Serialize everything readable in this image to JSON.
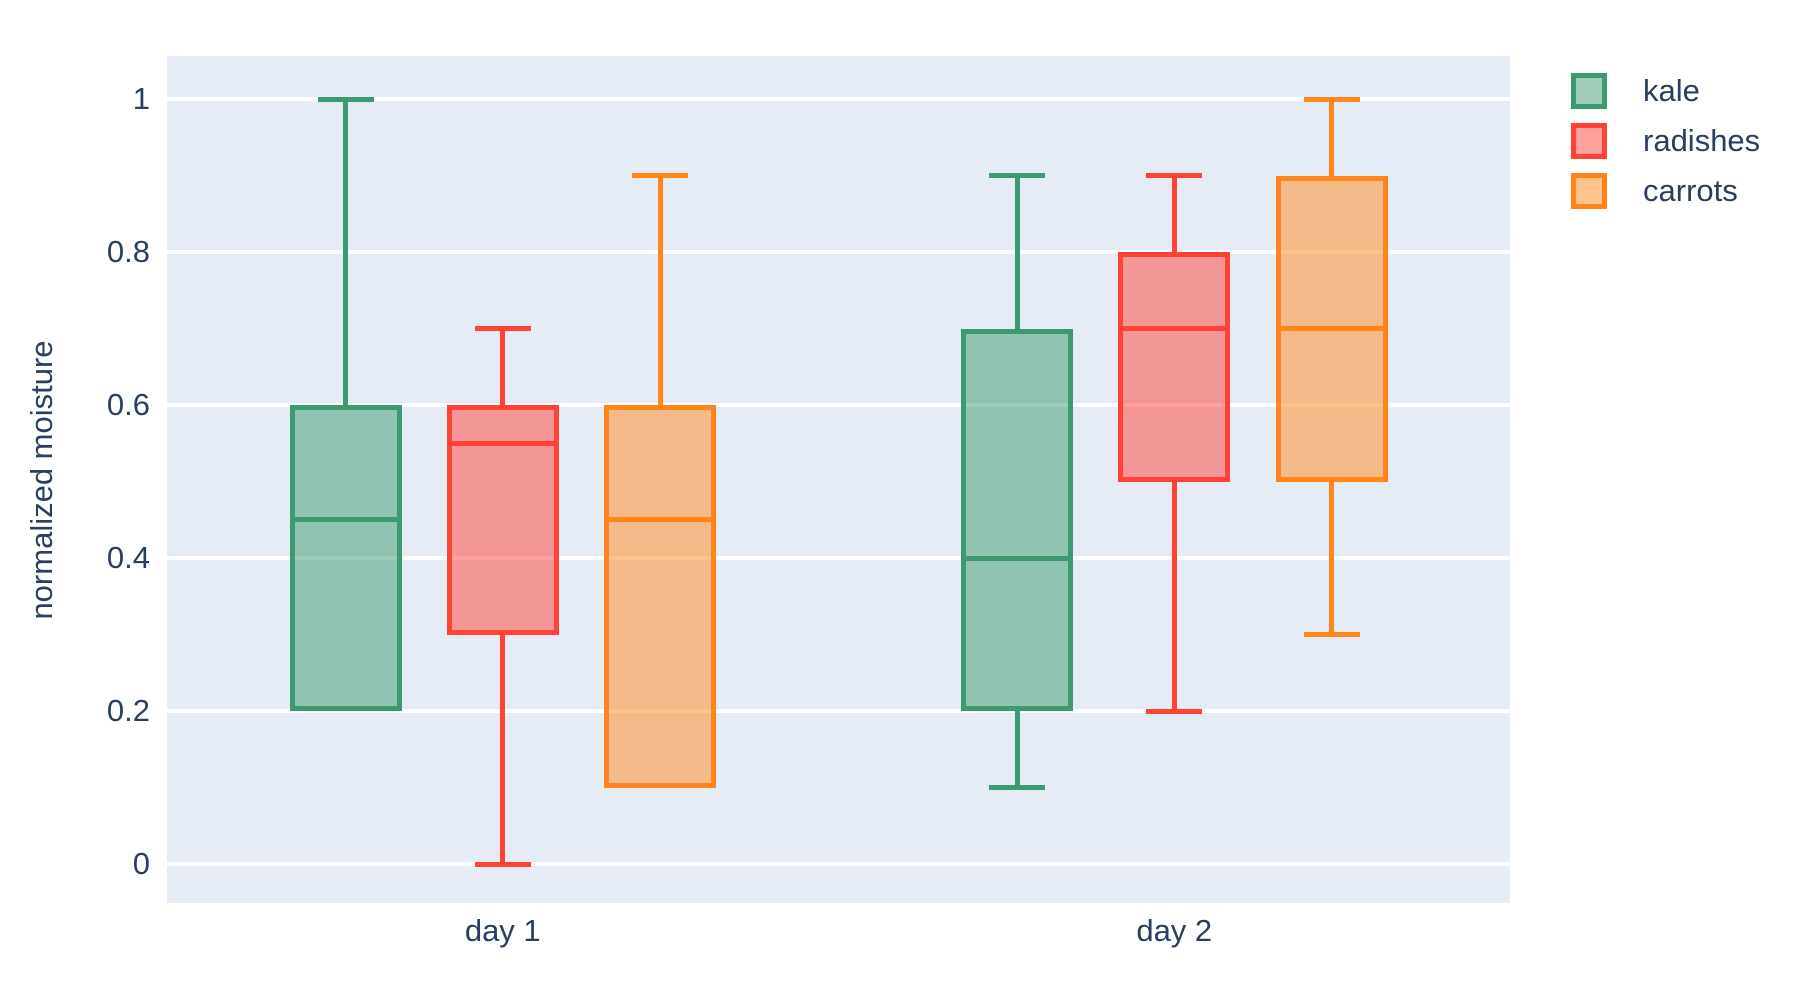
{
  "figure": {
    "background": "#ffffff",
    "plot_background": "#E5ECF6",
    "grid_color": "#ffffff",
    "text_color": "#2a3f5f"
  },
  "chart_data": {
    "type": "box",
    "orientation": "vertical",
    "grouped": true,
    "title": "",
    "xlabel": "",
    "ylabel": "normalized moisture",
    "categories": [
      "day 1",
      "day 2"
    ],
    "yticks": [
      0,
      0.2,
      0.4,
      0.6,
      0.8,
      1
    ],
    "ylim": [
      -0.06,
      1.06
    ],
    "grid": "horizontal-only",
    "legend_position": "outside-top-right",
    "box_fill_opacity": 0.5,
    "series": [
      {
        "name": "kale",
        "color": "#3D9970",
        "boxes": [
          {
            "category": "day 1",
            "whisker_low": 0.2,
            "q1": 0.2,
            "median": 0.45,
            "q3": 0.6,
            "whisker_high": 1.0
          },
          {
            "category": "day 2",
            "whisker_low": 0.1,
            "q1": 0.2,
            "median": 0.4,
            "q3": 0.7,
            "whisker_high": 0.9
          }
        ]
      },
      {
        "name": "radishes",
        "color": "#FF4136",
        "boxes": [
          {
            "category": "day 1",
            "whisker_low": 0.0,
            "q1": 0.3,
            "median": 0.55,
            "q3": 0.6,
            "whisker_high": 0.7
          },
          {
            "category": "day 2",
            "whisker_low": 0.2,
            "q1": 0.5,
            "median": 0.7,
            "q3": 0.8,
            "whisker_high": 0.9
          }
        ]
      },
      {
        "name": "carrots",
        "color": "#FF851B",
        "boxes": [
          {
            "category": "day 1",
            "whisker_low": 0.1,
            "q1": 0.1,
            "median": 0.45,
            "q3": 0.6,
            "whisker_high": 0.9
          },
          {
            "category": "day 2",
            "whisker_low": 0.3,
            "q1": 0.5,
            "median": 0.7,
            "q3": 0.9,
            "whisker_high": 1.0
          }
        ]
      }
    ]
  }
}
